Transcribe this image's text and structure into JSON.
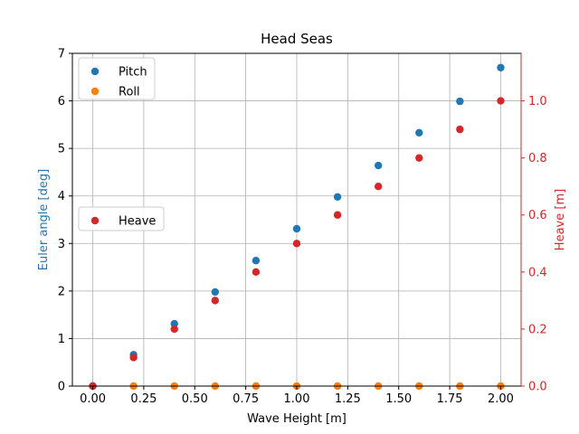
{
  "chart_data": {
    "type": "scatter",
    "title": "Head Seas",
    "xlabel": "Wave Height [m]",
    "ylabel_left": "Euler angle [deg]",
    "ylabel_right": "Heave [m]",
    "x": [
      0.0,
      0.2,
      0.4,
      0.6,
      0.8,
      1.0,
      1.2,
      1.4,
      1.6,
      1.8,
      2.0
    ],
    "xlim": [
      -0.1,
      2.1
    ],
    "ylim_left": [
      0,
      7
    ],
    "ylim_right": [
      0,
      1.1667
    ],
    "xticks": [
      0.0,
      0.25,
      0.5,
      0.75,
      1.0,
      1.25,
      1.5,
      1.75,
      2.0
    ],
    "xtick_labels": [
      "0.00",
      "0.25",
      "0.50",
      "0.75",
      "1.00",
      "1.25",
      "1.50",
      "1.75",
      "2.00"
    ],
    "yticks_left": [
      0,
      1,
      2,
      3,
      4,
      5,
      6,
      7
    ],
    "ytick_labels_left": [
      "0",
      "1",
      "2",
      "3",
      "4",
      "5",
      "6",
      "7"
    ],
    "yticks_right": [
      0.0,
      0.2,
      0.4,
      0.6,
      0.8,
      1.0
    ],
    "ytick_labels_right": [
      "0.0",
      "0.2",
      "0.4",
      "0.6",
      "0.8",
      "1.0"
    ],
    "grid": true,
    "series": [
      {
        "name": "Pitch",
        "axis": "left",
        "color": "#1f77b4",
        "values": [
          0.0,
          0.66,
          1.31,
          1.98,
          2.64,
          3.31,
          3.98,
          4.64,
          5.33,
          5.99,
          6.7
        ]
      },
      {
        "name": "Roll",
        "axis": "left",
        "color": "#ff7f0e",
        "values": [
          0,
          0,
          0,
          0,
          0,
          0,
          0,
          0,
          0,
          0,
          0
        ]
      },
      {
        "name": "Heave",
        "axis": "right",
        "color": "#d62728",
        "values": [
          0.0,
          0.1,
          0.2,
          0.3,
          0.4,
          0.5,
          0.6,
          0.7,
          0.8,
          0.9,
          1.0
        ]
      }
    ],
    "legends": [
      {
        "placement": "upper-left",
        "entries": [
          "Pitch",
          "Roll"
        ]
      },
      {
        "placement": "center-left",
        "entries": [
          "Heave"
        ]
      }
    ],
    "colors": {
      "left_axis_label": "#1f77b4",
      "right_axis": "#d62728",
      "grid": "#b0b0b0"
    }
  }
}
